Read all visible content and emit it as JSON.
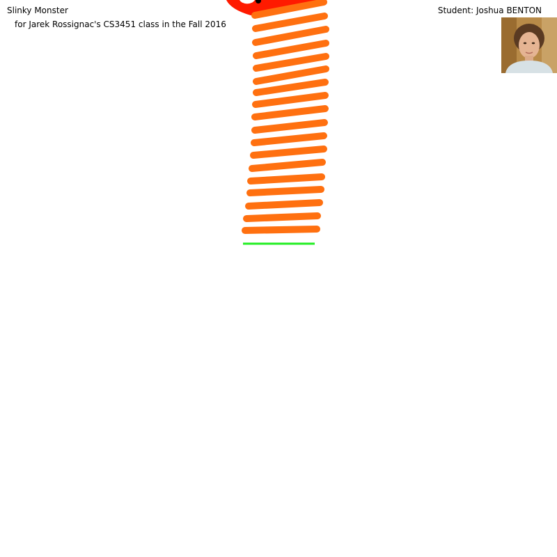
{
  "header": {
    "title": "Slinky Monster",
    "subtitle": "for Jarek Rossignac's CS3451 class in the Fall 2016",
    "student": "Student: Joshua BENTON"
  },
  "photo": {
    "label": "student photo"
  },
  "scene": {
    "colors": {
      "background": "#ffffff",
      "coil": "#ff7010",
      "head": "#ff1a00",
      "eye_white": "#ffffff",
      "eye_pupil": "#000000",
      "ground": "#22ee22"
    }
  }
}
